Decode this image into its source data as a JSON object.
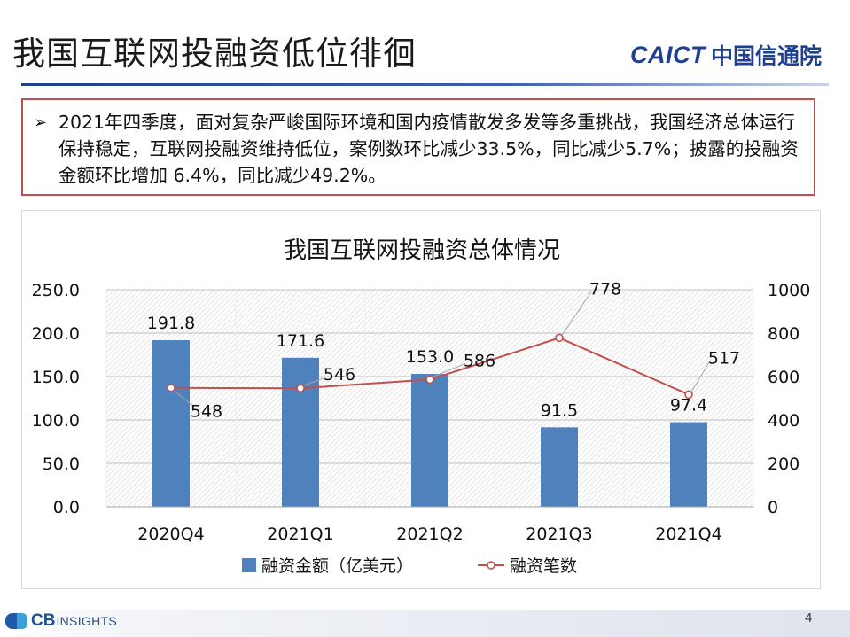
{
  "slide": {
    "title": "我国互联网投融资低位徘徊",
    "logo_latin": "CAICT",
    "logo_cn": "中国信通院",
    "page_number": "4"
  },
  "summary": {
    "bullet_icon": "arrow-bullet-icon",
    "text": "2021年四季度，面对复杂严峻国际环境和国内疫情散发多发等多重挑战，我国经济总体运行保持稳定，互联网投融资维持低位，案例数环比减少33.5%，同比减少5.7%；披露的投融资金额环比增加 6.4%，同比减少49.2%。"
  },
  "footer": {
    "logo_cb": "CB",
    "logo_insights": "INSIGHTS"
  },
  "colors": {
    "bar": "#4f81bd",
    "line": "#c0504d",
    "summary_border": "#c0504d",
    "brand": "#1f3f8f"
  },
  "chart_data": {
    "type": "bar",
    "title": "我国互联网投融资总体情况",
    "categories": [
      "2020Q4",
      "2021Q1",
      "2021Q2",
      "2021Q3",
      "2021Q4"
    ],
    "series": [
      {
        "name": "融资金额（亿美元）",
        "type": "bar",
        "axis": "left",
        "values": [
          191.8,
          171.6,
          153.0,
          91.5,
          97.4
        ],
        "labels": [
          "191.8",
          "171.6",
          "153.0",
          "91.5",
          "97.4"
        ]
      },
      {
        "name": "融资笔数",
        "type": "line",
        "axis": "right",
        "values": [
          548,
          546,
          586,
          778,
          517
        ],
        "labels": [
          "548",
          "546",
          "586",
          "778",
          "517"
        ]
      }
    ],
    "left_axis": {
      "ylim": [
        0,
        250
      ],
      "ticks": [
        "0.0",
        "50.0",
        "100.0",
        "150.0",
        "200.0",
        "250.0"
      ]
    },
    "right_axis": {
      "ylim": [
        0,
        1000
      ],
      "ticks": [
        "0",
        "200",
        "400",
        "600",
        "800",
        "1000"
      ]
    },
    "grid": true,
    "plot_background": "hatched",
    "legend_position": "bottom"
  }
}
